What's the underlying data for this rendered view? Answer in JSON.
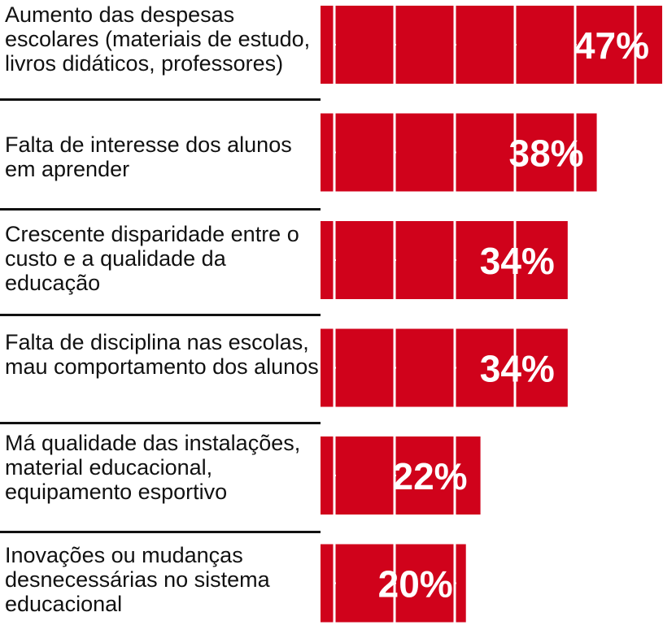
{
  "chart_data": {
    "type": "bar",
    "orientation": "horizontal",
    "categories": [
      "Aumento das despesas escolares (materiais de estudo, livros didáticos, professores)",
      "Falta de interesse dos alunos em aprender",
      "Crescente disparidade entre o custo e a qualidade da educação",
      "Falta de disciplina nas escolas, mau comportamento dos alunos",
      "Má qualidade das instalações, material educacional, equipamento esportivo",
      "Inovações ou mudanças desnecessárias no sistema educacional"
    ],
    "values": [
      47,
      38,
      34,
      34,
      22,
      20
    ],
    "value_labels": [
      "47%",
      "38%",
      "34%",
      "34%",
      "22%",
      "20%"
    ],
    "title": "",
    "xlabel": "",
    "ylabel": "",
    "xlim": [
      0,
      50
    ],
    "grid": false,
    "legend": "none",
    "colors": {
      "bar": "#d0021b",
      "divider": "#ffffff",
      "label_text": "#ffffff",
      "separator": "#111111"
    }
  }
}
